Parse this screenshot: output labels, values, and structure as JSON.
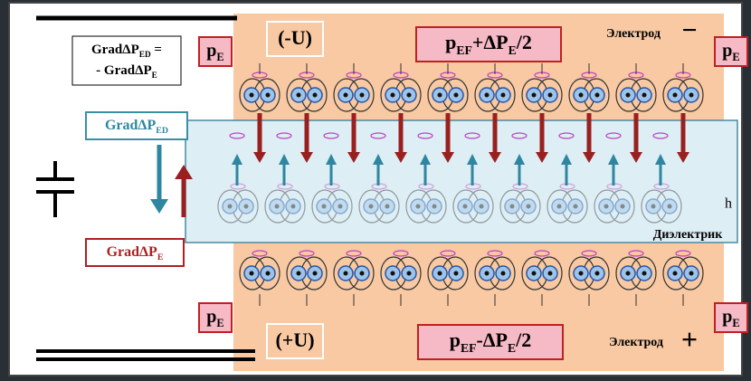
{
  "equation": [
    [
      {
        "text": "GradΔP"
      },
      {
        "sub": "ED"
      },
      {
        "text": " ="
      }
    ],
    [
      {
        "text": "- GradΔP"
      },
      {
        "sub": "E"
      }
    ]
  ],
  "pe_labels": [
    [
      {
        "text": "p"
      },
      {
        "sub": "E"
      }
    ],
    [
      {
        "text": "p"
      },
      {
        "sub": "E"
      }
    ],
    [
      {
        "text": "p"
      },
      {
        "sub": "E"
      }
    ],
    [
      {
        "text": "p"
      },
      {
        "sub": "E"
      }
    ]
  ],
  "top_electrode": {
    "voltage": "(-U)",
    "formula": [
      {
        "text": "p"
      },
      {
        "sub": "EF"
      },
      {
        "text": "+ΔP"
      },
      {
        "sub": "E"
      },
      {
        "text": "/2"
      }
    ],
    "label": "Электрод",
    "sign": "−"
  },
  "bottom_electrode": {
    "voltage": "(+U)",
    "formula": [
      {
        "text": "p"
      },
      {
        "sub": "EF"
      },
      {
        "text": "-ΔP"
      },
      {
        "sub": "E"
      },
      {
        "text": "/2"
      }
    ],
    "label": "Электрод",
    "sign": "+"
  },
  "gradient_ed": [
    {
      "text": "GradΔP"
    },
    {
      "sub": "ED"
    }
  ],
  "gradient_e": [
    {
      "text": "GradΔP"
    },
    {
      "sub": "E"
    }
  ],
  "dielectric": {
    "label": "Диэлектрик",
    "thickness": "h"
  }
}
